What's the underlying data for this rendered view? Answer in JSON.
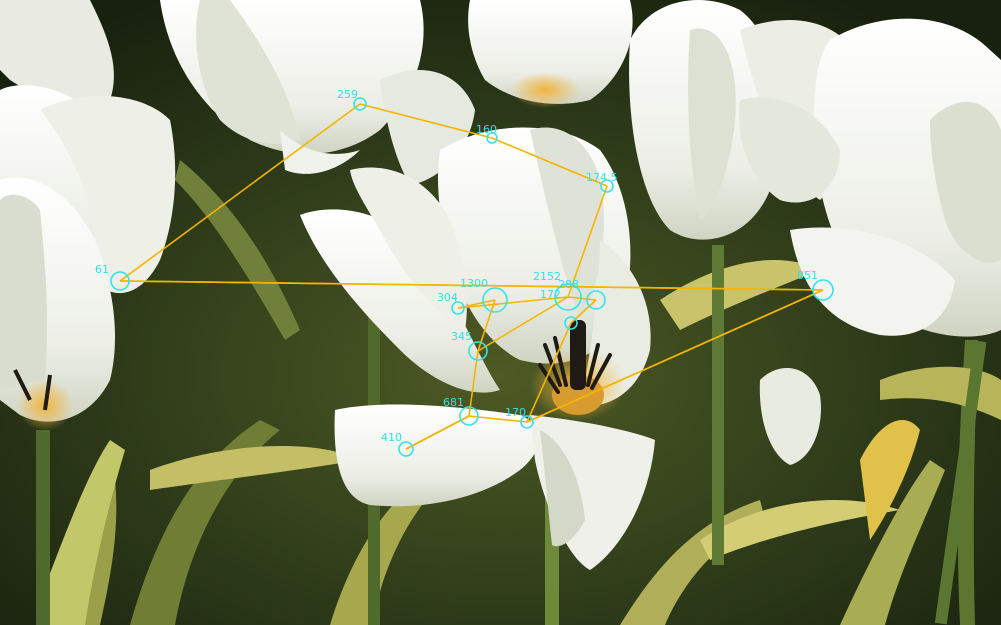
{
  "scene": {
    "subject": "white-tulips",
    "colors": {
      "background": "#1f2a14",
      "leaf_dark": "#2c3a1c",
      "leaf_light": "#b8b860",
      "petal": "#f2f2ee",
      "petal_shade": "#d8dccf",
      "petal_base": "#e4a63a",
      "stamen": "#201a14",
      "stem": "#5f7a34",
      "path_line": "#f5b400",
      "fixation_ring": "#35e3ea",
      "label_text": "#33e0e6"
    }
  },
  "gaze_overlay": {
    "fixations": [
      {
        "id": "f1",
        "label": "259"
      },
      {
        "id": "f2",
        "label": "160"
      },
      {
        "id": "f3",
        "label": "174.5"
      },
      {
        "id": "f4",
        "label": "61"
      },
      {
        "id": "f5",
        "label": "851"
      },
      {
        "id": "f6",
        "label": "1300"
      },
      {
        "id": "f7",
        "label": "304"
      },
      {
        "id": "f8",
        "label": "2152"
      },
      {
        "id": "f9",
        "label": "172"
      },
      {
        "id": "f10",
        "label": "288"
      },
      {
        "id": "f11",
        "label": "345"
      },
      {
        "id": "f12",
        "label": "681"
      },
      {
        "id": "f13",
        "label": "410"
      },
      {
        "id": "f14",
        "label": "170"
      }
    ]
  }
}
